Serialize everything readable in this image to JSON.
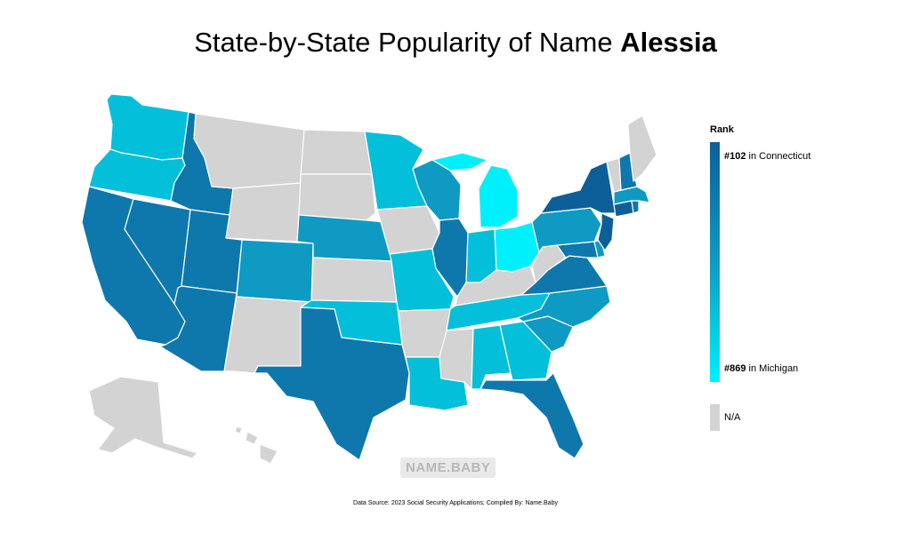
{
  "title": {
    "prefix": "State-by-State Popularity of Name",
    "name": "Alessia"
  },
  "legend": {
    "heading": "Rank",
    "top": {
      "rank": "#102",
      "text": " in Connecticut",
      "color": "#0d5f9a"
    },
    "bottom": {
      "rank": "#869",
      "text": " in Michigan",
      "color": "#00f0fb"
    },
    "na_label": "N/A",
    "na_color": "#d3d3d3"
  },
  "watermark": "NAME.BABY",
  "source": "Data Source: 2023 Social Security Applications; Compiled By: Name.Baby",
  "colors": {
    "darkest": "#0d5f9a",
    "dark": "#0e78ad",
    "mid": "#0f9ac3",
    "light": "#04bfd9",
    "lightest": "#00f0fb",
    "na": "#d3d3d3"
  },
  "states": [
    {
      "name": "Washington",
      "shade": "light"
    },
    {
      "name": "Oregon",
      "shade": "light"
    },
    {
      "name": "California",
      "shade": "dark"
    },
    {
      "name": "Nevada",
      "shade": "dark"
    },
    {
      "name": "Idaho",
      "shade": "dark"
    },
    {
      "name": "Montana",
      "shade": "na"
    },
    {
      "name": "Wyoming",
      "shade": "na"
    },
    {
      "name": "Utah",
      "shade": "dark"
    },
    {
      "name": "Arizona",
      "shade": "dark"
    },
    {
      "name": "Colorado",
      "shade": "mid"
    },
    {
      "name": "New Mexico",
      "shade": "na"
    },
    {
      "name": "North Dakota",
      "shade": "na"
    },
    {
      "name": "South Dakota",
      "shade": "na"
    },
    {
      "name": "Nebraska",
      "shade": "mid"
    },
    {
      "name": "Kansas",
      "shade": "na"
    },
    {
      "name": "Oklahoma",
      "shade": "light"
    },
    {
      "name": "Texas",
      "shade": "dark"
    },
    {
      "name": "Minnesota",
      "shade": "light"
    },
    {
      "name": "Iowa",
      "shade": "na"
    },
    {
      "name": "Missouri",
      "shade": "light"
    },
    {
      "name": "Arkansas",
      "shade": "na"
    },
    {
      "name": "Louisiana",
      "shade": "light"
    },
    {
      "name": "Wisconsin",
      "shade": "mid"
    },
    {
      "name": "Illinois",
      "shade": "dark"
    },
    {
      "name": "Michigan",
      "shade": "lightest"
    },
    {
      "name": "Indiana",
      "shade": "light"
    },
    {
      "name": "Ohio",
      "shade": "lightest"
    },
    {
      "name": "Kentucky",
      "shade": "na"
    },
    {
      "name": "Tennessee",
      "shade": "light"
    },
    {
      "name": "Mississippi",
      "shade": "na"
    },
    {
      "name": "Alabama",
      "shade": "light"
    },
    {
      "name": "Georgia",
      "shade": "light"
    },
    {
      "name": "Florida",
      "shade": "dark"
    },
    {
      "name": "South Carolina",
      "shade": "mid"
    },
    {
      "name": "North Carolina",
      "shade": "mid"
    },
    {
      "name": "Virginia",
      "shade": "dark"
    },
    {
      "name": "West Virginia",
      "shade": "na"
    },
    {
      "name": "Maryland",
      "shade": "dark"
    },
    {
      "name": "Delaware",
      "shade": "mid"
    },
    {
      "name": "Pennsylvania",
      "shade": "mid"
    },
    {
      "name": "New Jersey",
      "shade": "darkest"
    },
    {
      "name": "New York",
      "shade": "darkest"
    },
    {
      "name": "Connecticut",
      "shade": "darkest"
    },
    {
      "name": "Rhode Island",
      "shade": "dark"
    },
    {
      "name": "Massachusetts",
      "shade": "mid"
    },
    {
      "name": "Vermont",
      "shade": "na"
    },
    {
      "name": "New Hampshire",
      "shade": "dark"
    },
    {
      "name": "Maine",
      "shade": "na"
    },
    {
      "name": "Alaska",
      "shade": "na"
    },
    {
      "name": "Hawaii",
      "shade": "na"
    }
  ]
}
